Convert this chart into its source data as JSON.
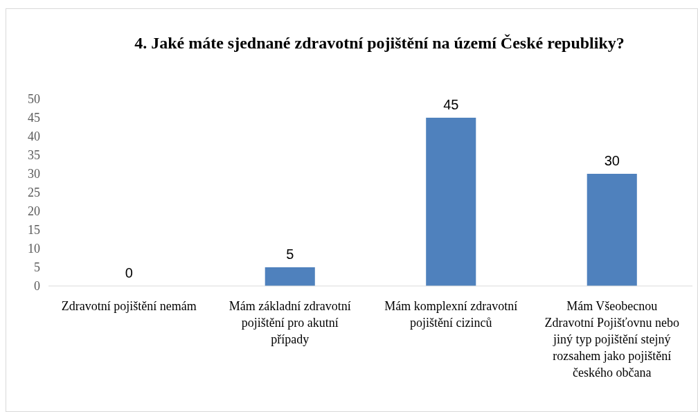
{
  "chart_data": {
    "type": "bar",
    "title": "4. Jaké máte sjednané zdravotní pojištění na území České republiky?",
    "categories": [
      "Zdravotní pojištění nemám",
      "Mám základní zdravotní pojištění pro akutní případy",
      "Mám komplexní zdravotní pojištění cizinců",
      "Mám Všeobecnou Zdravotní Pojišťovnu nebo jiný typ pojištění stejný rozsahem jako pojištění českého občana"
    ],
    "values": [
      0,
      5,
      45,
      30
    ],
    "color": "#4f81bd",
    "ylim": [
      0,
      50
    ],
    "yticks": [
      0,
      5,
      10,
      15,
      20,
      25,
      30,
      35,
      40,
      45,
      50
    ],
    "grid": false,
    "data_labels": true
  }
}
